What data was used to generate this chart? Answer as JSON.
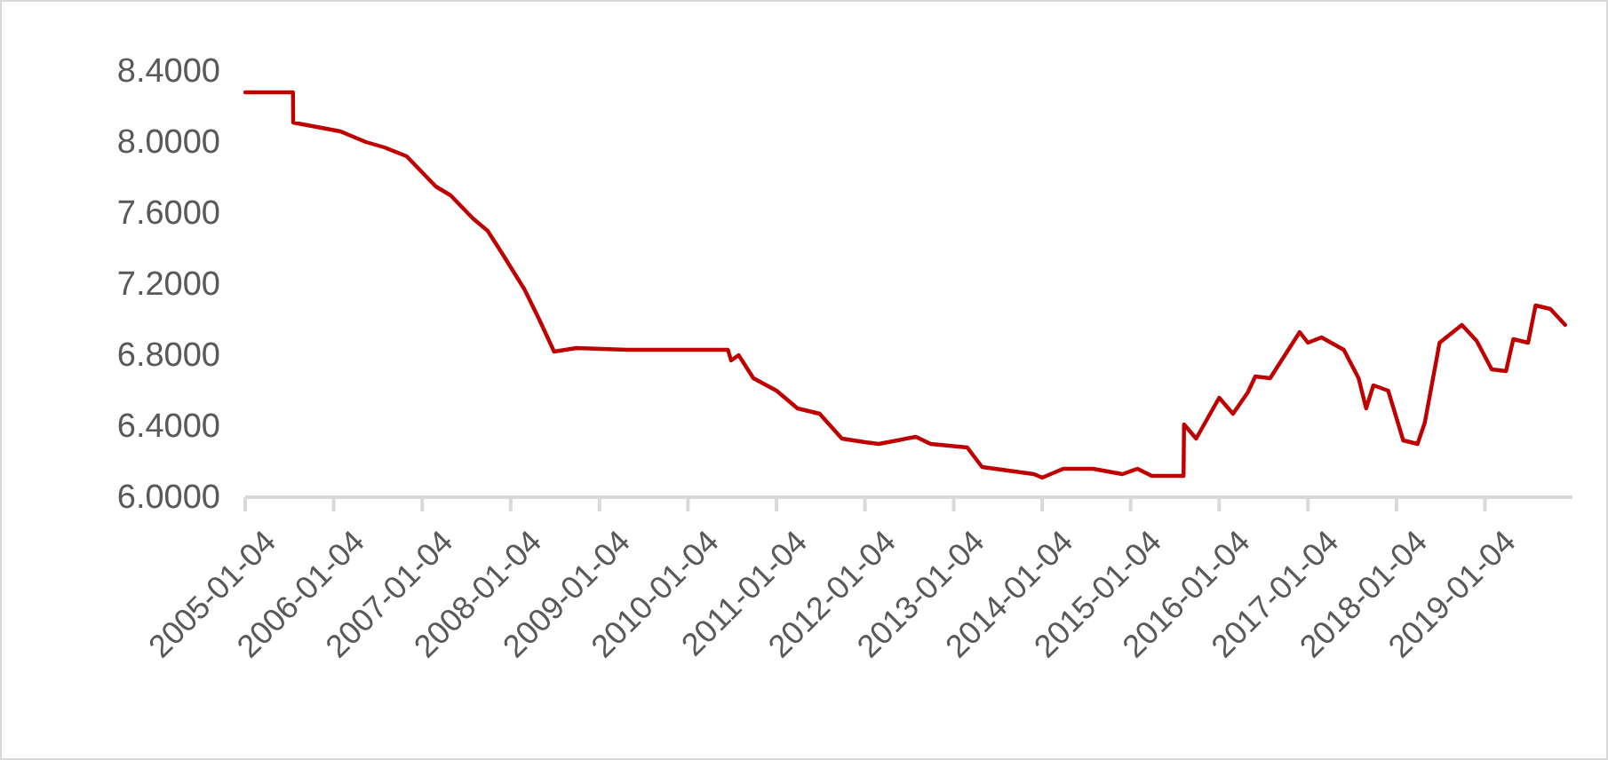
{
  "chart_data": {
    "type": "line",
    "series": [
      {
        "color": "#c00000",
        "x": [
          "2005-01-04",
          "2005-07-20",
          "2005-07-21",
          "2006-02-01",
          "2006-05-17",
          "2006-08-01",
          "2006-11-01",
          "2007-03-01",
          "2007-05-01",
          "2007-08-01",
          "2007-10-01",
          "2007-12-01",
          "2008-03-01",
          "2008-05-01",
          "2008-07-01",
          "2008-10-01",
          "2009-05-01",
          "2010-06-18",
          "2010-07-01",
          "2010-08-01",
          "2010-10-01",
          "2011-01-04",
          "2011-04-01",
          "2011-07-01",
          "2011-10-01",
          "2012-01-04",
          "2012-03-01",
          "2012-08-01",
          "2012-10-01",
          "2013-03-01",
          "2013-05-01",
          "2013-12-01",
          "2014-01-04",
          "2014-04-01",
          "2014-08-01",
          "2014-12-01",
          "2015-02-01",
          "2015-04-01",
          "2015-08-10",
          "2015-08-12",
          "2015-10-01",
          "2016-01-04",
          "2016-03-01",
          "2016-05-01",
          "2016-06-01",
          "2016-08-01",
          "2016-12-01",
          "2017-01-04",
          "2017-03-01",
          "2017-06-01",
          "2017-08-01",
          "2017-09-01",
          "2017-10-01",
          "2017-12-01",
          "2018-02-01",
          "2018-04-01",
          "2018-05-01",
          "2018-07-01",
          "2018-10-01",
          "2018-12-01",
          "2019-02-01",
          "2019-04-01",
          "2019-05-01",
          "2019-07-01",
          "2019-08-01",
          "2019-10-01",
          "2019-12-01"
        ],
        "values": [
          8.28,
          8.28,
          8.11,
          8.06,
          8.0,
          7.97,
          7.92,
          7.75,
          7.7,
          7.57,
          7.5,
          7.37,
          7.17,
          7.0,
          6.82,
          6.84,
          6.83,
          6.83,
          6.77,
          6.8,
          6.67,
          6.6,
          6.5,
          6.47,
          6.33,
          6.31,
          6.3,
          6.34,
          6.3,
          6.28,
          6.17,
          6.13,
          6.11,
          6.16,
          6.16,
          6.13,
          6.16,
          6.12,
          6.12,
          6.41,
          6.33,
          6.56,
          6.47,
          6.59,
          6.68,
          6.67,
          6.93,
          6.87,
          6.9,
          6.83,
          6.67,
          6.5,
          6.63,
          6.6,
          6.32,
          6.3,
          6.42,
          6.87,
          6.97,
          6.88,
          6.72,
          6.71,
          6.89,
          6.87,
          7.08,
          7.06,
          6.97
        ]
      }
    ],
    "xlim": [
      "2005-01-04",
      "2019-12-31"
    ],
    "xticks": [
      "2005-01-04",
      "2006-01-04",
      "2007-01-04",
      "2008-01-04",
      "2009-01-04",
      "2010-01-04",
      "2011-01-04",
      "2012-01-04",
      "2013-01-04",
      "2014-01-04",
      "2015-01-04",
      "2016-01-04",
      "2017-01-04",
      "2018-01-04",
      "2019-01-04"
    ],
    "ylim": [
      6.0,
      8.4
    ],
    "yticks": [
      {
        "value": 6.0,
        "label": "6.0000"
      },
      {
        "value": 6.4,
        "label": "6.4000"
      },
      {
        "value": 6.8,
        "label": "6.8000"
      },
      {
        "value": 7.2,
        "label": "7.2000"
      },
      {
        "value": 7.6,
        "label": "7.6000"
      },
      {
        "value": 8.0,
        "label": "8.0000"
      },
      {
        "value": 8.4,
        "label": "8.4000"
      }
    ],
    "grid": false,
    "marker": "none",
    "line_style": "solid"
  }
}
